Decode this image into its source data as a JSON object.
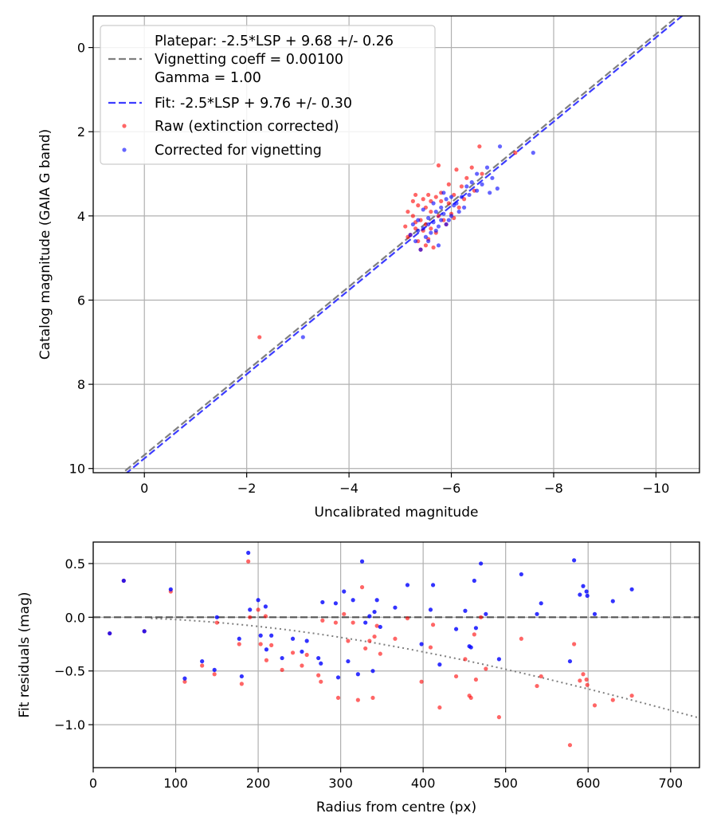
{
  "colors": {
    "raw": "#ff0000",
    "corrected": "#0000ff",
    "platepar_line": "#7f7f7f",
    "fit_line": "#3c3cff",
    "vignetting_curve": "#7f7f7f",
    "grid": "#b0b0b0"
  },
  "chart_data": [
    {
      "type": "scatter",
      "xlabel": "Uncalibrated magnitude",
      "ylabel": "Catalog magnitude (GAIA G band)",
      "xlim": [
        1,
        -10.85
      ],
      "ylim": [
        10.1,
        -0.75
      ],
      "xticks": [
        0,
        -2,
        -4,
        -6,
        -8,
        -10
      ],
      "yticks": [
        0,
        2,
        4,
        6,
        8,
        10
      ],
      "xtick_labels": [
        "0",
        "−2",
        "−4",
        "−6",
        "−8",
        "−10"
      ],
      "ytick_labels": [
        "0",
        "2",
        "4",
        "6",
        "8",
        "10"
      ],
      "grid": true,
      "legend_position": "top-left",
      "legend": [
        {
          "kind": "text",
          "label": "Platepar: -2.5*LSP + 9.68 +/- 0.26"
        },
        {
          "kind": "dashed",
          "color_key": "platepar_line",
          "label": "Vignetting coeff = 0.00100"
        },
        {
          "kind": "text",
          "label": "Gamma = 1.00"
        },
        {
          "kind": "dashed",
          "color_key": "fit_line",
          "label": "Fit: -2.5*LSP + 9.76 +/- 0.30"
        },
        {
          "kind": "dot",
          "color_key": "raw",
          "label": "Raw (extinction corrected)"
        },
        {
          "kind": "dot",
          "color_key": "corrected",
          "label": "Corrected for vignetting"
        }
      ],
      "lines": [
        {
          "name": "platepar",
          "color_key": "platepar_line",
          "slope": 1,
          "intercept": 9.68
        },
        {
          "name": "fit",
          "color_key": "fit_line",
          "slope": 1,
          "intercept": 9.76
        }
      ],
      "series": [
        {
          "name": "Raw (extinction corrected)",
          "color_key": "raw",
          "points": [
            [
              -2.25,
              6.88
            ],
            [
              -6.55,
              2.35
            ],
            [
              -7.25,
              2.5
            ],
            [
              -5.75,
              2.8
            ],
            [
              -6.1,
              2.9
            ],
            [
              -6.4,
              2.85
            ],
            [
              -5.3,
              3.5
            ],
            [
              -5.45,
              3.6
            ],
            [
              -5.55,
              3.5
            ],
            [
              -5.7,
              3.55
            ],
            [
              -5.8,
              3.65
            ],
            [
              -5.95,
              3.7
            ],
            [
              -6.05,
              3.5
            ],
            [
              -6.2,
              3.3
            ],
            [
              -6.3,
              3.1
            ],
            [
              -5.35,
              3.75
            ],
            [
              -5.5,
              3.8
            ],
            [
              -5.6,
              3.9
            ],
            [
              -5.75,
              4.0
            ],
            [
              -5.85,
              4.1
            ],
            [
              -6.0,
              3.95
            ],
            [
              -6.15,
              3.8
            ],
            [
              -5.25,
              4.0
            ],
            [
              -5.4,
              4.1
            ],
            [
              -5.5,
              4.2
            ],
            [
              -5.3,
              4.3
            ],
            [
              -5.45,
              4.35
            ],
            [
              -5.6,
              4.3
            ],
            [
              -5.2,
              4.45
            ],
            [
              -5.1,
              4.25
            ],
            [
              -5.35,
              4.6
            ],
            [
              -5.5,
              4.7
            ],
            [
              -5.65,
              4.75
            ],
            [
              -5.4,
              4.8
            ],
            [
              -5.9,
              4.2
            ],
            [
              -6.05,
              4.05
            ],
            [
              -5.15,
              3.9
            ],
            [
              -5.25,
              3.65
            ],
            [
              -6.45,
              3.4
            ],
            [
              -6.6,
              3.0
            ],
            [
              -5.55,
              4.55
            ],
            [
              -5.7,
              4.4
            ],
            [
              -5.6,
              3.65
            ],
            [
              -5.8,
              3.45
            ],
            [
              -6.25,
              3.6
            ],
            [
              -5.3,
              4.15
            ],
            [
              -5.95,
              3.25
            ],
            [
              -5.15,
              4.5
            ]
          ]
        },
        {
          "name": "Corrected for vignetting",
          "color_key": "corrected",
          "points": [
            [
              -3.1,
              6.88
            ],
            [
              -6.95,
              2.35
            ],
            [
              -7.6,
              2.5
            ],
            [
              -6.7,
              2.85
            ],
            [
              -6.5,
              3.0
            ],
            [
              -6.8,
              3.1
            ],
            [
              -6.3,
              3.3
            ],
            [
              -6.5,
              3.4
            ],
            [
              -6.75,
              3.45
            ],
            [
              -6.2,
              3.55
            ],
            [
              -6.1,
              3.7
            ],
            [
              -5.9,
              3.6
            ],
            [
              -5.8,
              3.8
            ],
            [
              -5.7,
              3.9
            ],
            [
              -5.55,
              4.05
            ],
            [
              -5.65,
              4.15
            ],
            [
              -5.75,
              4.25
            ],
            [
              -5.9,
              4.2
            ],
            [
              -5.45,
              4.3
            ],
            [
              -5.35,
              4.1
            ],
            [
              -5.6,
              4.4
            ],
            [
              -5.5,
              4.5
            ],
            [
              -5.3,
              4.6
            ],
            [
              -5.4,
              4.8
            ],
            [
              -5.75,
              4.7
            ],
            [
              -6.0,
              4.0
            ],
            [
              -6.15,
              3.9
            ],
            [
              -5.85,
              3.95
            ],
            [
              -5.95,
              4.1
            ],
            [
              -6.6,
              3.25
            ],
            [
              -5.2,
              4.45
            ],
            [
              -5.55,
              4.6
            ],
            [
              -6.05,
              3.75
            ],
            [
              -6.35,
              3.5
            ],
            [
              -5.45,
              3.85
            ],
            [
              -5.7,
              4.35
            ],
            [
              -6.25,
              3.8
            ],
            [
              -6.4,
              3.2
            ],
            [
              -5.65,
              3.7
            ],
            [
              -5.25,
              4.2
            ],
            [
              -6.9,
              3.35
            ],
            [
              -5.85,
              3.45
            ],
            [
              -5.55,
              4.2
            ],
            [
              -6.0,
              3.55
            ],
            [
              -5.35,
              4.35
            ],
            [
              -5.8,
              4.1
            ]
          ]
        }
      ]
    },
    {
      "type": "scatter",
      "xlabel": "Radius from centre (px)",
      "ylabel": "Fit residuals (mag)",
      "xlim": [
        0,
        735
      ],
      "ylim": [
        -1.4,
        0.7
      ],
      "xticks": [
        0,
        100,
        200,
        300,
        400,
        500,
        600,
        700
      ],
      "yticks": [
        0.5,
        0.0,
        -0.5,
        -1.0
      ],
      "xtick_labels": [
        "0",
        "100",
        "200",
        "300",
        "400",
        "500",
        "600",
        "700"
      ],
      "ytick_labels": [
        "0.5",
        "0.0",
        "−0.5",
        "−1.0"
      ],
      "grid": true,
      "reference_line": {
        "y": 0,
        "color_key": "platepar_line"
      },
      "vignetting_curve": {
        "coeff": 0.001,
        "x_start": 70,
        "x_end": 735,
        "color_key": "vignetting_curve"
      },
      "series": [
        {
          "name": "Raw (extinction corrected)",
          "color_key": "raw",
          "points": [
            [
              20,
              -0.15
            ],
            [
              37,
              0.34
            ],
            [
              62,
              -0.13
            ],
            [
              94,
              0.24
            ],
            [
              111,
              -0.6
            ],
            [
              132,
              -0.45
            ],
            [
              147,
              -0.53
            ],
            [
              150,
              -0.05
            ],
            [
              177,
              -0.25
            ],
            [
              180,
              -0.62
            ],
            [
              188,
              0.52
            ],
            [
              190,
              0.0
            ],
            [
              200,
              0.07
            ],
            [
              203,
              -0.25
            ],
            [
              209,
              0.01
            ],
            [
              210,
              -0.4
            ],
            [
              216,
              -0.26
            ],
            [
              229,
              -0.49
            ],
            [
              242,
              -0.33
            ],
            [
              253,
              -0.45
            ],
            [
              259,
              -0.35
            ],
            [
              273,
              -0.54
            ],
            [
              276,
              -0.6
            ],
            [
              278,
              -0.03
            ],
            [
              294,
              -0.05
            ],
            [
              297,
              -0.75
            ],
            [
              304,
              0.03
            ],
            [
              309,
              -0.22
            ],
            [
              315,
              -0.05
            ],
            [
              321,
              -0.77
            ],
            [
              326,
              0.28
            ],
            [
              330,
              -0.29
            ],
            [
              335,
              -0.22
            ],
            [
              339,
              -0.75
            ],
            [
              341,
              -0.18
            ],
            [
              344,
              -0.08
            ],
            [
              348,
              -0.34
            ],
            [
              366,
              -0.2
            ],
            [
              381,
              -0.01
            ],
            [
              398,
              -0.6
            ],
            [
              409,
              -0.28
            ],
            [
              412,
              -0.07
            ],
            [
              420,
              -0.84
            ],
            [
              440,
              -0.55
            ],
            [
              451,
              -0.39
            ],
            [
              456,
              -0.73
            ],
            [
              458,
              -0.75
            ],
            [
              462,
              -0.16
            ],
            [
              464,
              -0.58
            ],
            [
              470,
              0.0
            ],
            [
              476,
              -0.48
            ],
            [
              492,
              -0.93
            ],
            [
              519,
              -0.2
            ],
            [
              538,
              -0.64
            ],
            [
              543,
              -0.55
            ],
            [
              578,
              -1.19
            ],
            [
              583,
              -0.25
            ],
            [
              590,
              -0.59
            ],
            [
              594,
              -0.53
            ],
            [
              598,
              -0.58
            ],
            [
              599,
              -0.63
            ],
            [
              608,
              -0.82
            ],
            [
              630,
              -0.77
            ],
            [
              653,
              -0.73
            ]
          ]
        },
        {
          "name": "Corrected for vignetting",
          "color_key": "corrected",
          "points": [
            [
              20,
              -0.15
            ],
            [
              37,
              0.34
            ],
            [
              62,
              -0.13
            ],
            [
              94,
              0.26
            ],
            [
              111,
              -0.57
            ],
            [
              132,
              -0.41
            ],
            [
              147,
              -0.49
            ],
            [
              150,
              0.0
            ],
            [
              177,
              -0.2
            ],
            [
              180,
              -0.55
            ],
            [
              188,
              0.6
            ],
            [
              190,
              0.07
            ],
            [
              200,
              0.16
            ],
            [
              203,
              -0.17
            ],
            [
              209,
              0.1
            ],
            [
              210,
              -0.3
            ],
            [
              216,
              -0.17
            ],
            [
              229,
              -0.38
            ],
            [
              242,
              -0.2
            ],
            [
              253,
              -0.32
            ],
            [
              259,
              -0.22
            ],
            [
              273,
              -0.38
            ],
            [
              276,
              -0.43
            ],
            [
              278,
              0.14
            ],
            [
              294,
              0.13
            ],
            [
              297,
              -0.56
            ],
            [
              304,
              0.24
            ],
            [
              309,
              -0.41
            ],
            [
              315,
              0.16
            ],
            [
              321,
              -0.53
            ],
            [
              326,
              0.52
            ],
            [
              330,
              -0.05
            ],
            [
              335,
              0.01
            ],
            [
              339,
              -0.5
            ],
            [
              341,
              0.05
            ],
            [
              344,
              0.16
            ],
            [
              348,
              -0.09
            ],
            [
              366,
              0.09
            ],
            [
              381,
              0.3
            ],
            [
              398,
              -0.25
            ],
            [
              409,
              0.07
            ],
            [
              412,
              0.3
            ],
            [
              420,
              -0.44
            ],
            [
              440,
              -0.11
            ],
            [
              451,
              0.06
            ],
            [
              456,
              -0.27
            ],
            [
              458,
              -0.28
            ],
            [
              462,
              0.34
            ],
            [
              464,
              -0.1
            ],
            [
              470,
              0.5
            ],
            [
              476,
              0.03
            ],
            [
              492,
              -0.39
            ],
            [
              519,
              0.4
            ],
            [
              538,
              0.03
            ],
            [
              543,
              0.13
            ],
            [
              578,
              -0.41
            ],
            [
              583,
              0.53
            ],
            [
              590,
              0.21
            ],
            [
              594,
              0.29
            ],
            [
              598,
              0.24
            ],
            [
              599,
              0.2
            ],
            [
              608,
              0.03
            ],
            [
              630,
              0.15
            ],
            [
              653,
              0.26
            ]
          ]
        }
      ]
    }
  ]
}
